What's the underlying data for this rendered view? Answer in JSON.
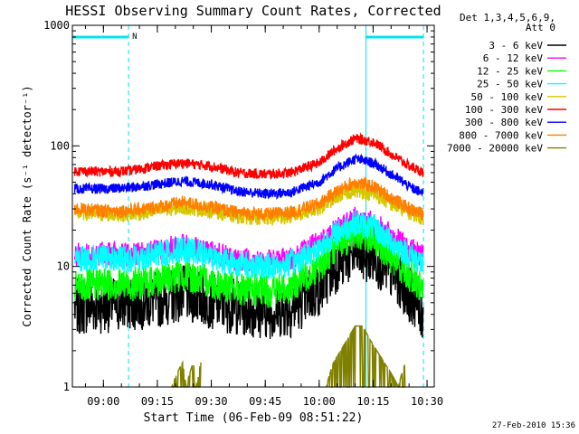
{
  "chart_data": {
    "type": "line",
    "title": "HESSI Observing Summary Count Rates, Corrected",
    "xlabel": "Start Time (06-Feb-09 08:51:22)",
    "ylabel": "Corrected Count Rate (s⁻¹ detector⁻¹)",
    "y_scale": "log",
    "ylim": [
      1,
      1000
    ],
    "xlim": [
      "08:51:22",
      "10:32:00"
    ],
    "y_ticks": [
      "1",
      "10",
      "100",
      "1000"
    ],
    "x_ticks": [
      "09:00",
      "09:15",
      "09:30",
      "09:45",
      "10:00",
      "10:15",
      "10:30"
    ],
    "grid": false,
    "legend_position": "right",
    "legend_header": [
      "Det 1,3,4,5,6,9,",
      "Att 0"
    ],
    "footer_date": "27-Feb-2010 15:36",
    "flag_label": "N",
    "night_periods": [
      {
        "start": "08:51:22",
        "end": "09:07:00"
      },
      {
        "start": "10:13:00",
        "end": "10:29:00"
      }
    ],
    "series": [
      {
        "name": "3 - 6 keV",
        "color": "#000000",
        "x": [
          "08:52",
          "09:00",
          "09:07",
          "09:15",
          "09:22",
          "09:30",
          "09:37",
          "09:45",
          "09:52",
          "10:00",
          "10:05",
          "10:10",
          "10:15",
          "10:20",
          "10:25",
          "10:29"
        ],
        "y": [
          4.6,
          4.8,
          5.0,
          5.3,
          6.0,
          5.2,
          4.6,
          4.3,
          4.4,
          6.5,
          10.5,
          13.0,
          12.0,
          9.0,
          6.0,
          4.0
        ]
      },
      {
        "name": "6 - 12 keV",
        "color": "#ff00ff",
        "x": [
          "08:52",
          "09:00",
          "09:07",
          "09:15",
          "09:22",
          "09:30",
          "09:37",
          "09:45",
          "09:52",
          "10:00",
          "10:05",
          "10:10",
          "10:15",
          "10:20",
          "10:25",
          "10:29"
        ],
        "y": [
          12.5,
          12.8,
          12.5,
          13.5,
          15.0,
          13.0,
          11.5,
          11.0,
          11.5,
          16.0,
          21.0,
          25.0,
          23.0,
          18.0,
          14.0,
          12.0
        ]
      },
      {
        "name": "12 - 25 keV",
        "color": "#00ff00",
        "x": [
          "08:52",
          "09:00",
          "09:07",
          "09:15",
          "09:22",
          "09:30",
          "09:37",
          "09:45",
          "09:52",
          "10:00",
          "10:05",
          "10:10",
          "10:15",
          "10:20",
          "10:25",
          "10:29"
        ],
        "y": [
          6.6,
          7.2,
          7.0,
          7.6,
          8.5,
          7.4,
          6.5,
          6.2,
          6.6,
          10.0,
          15.0,
          19.0,
          17.0,
          12.0,
          8.5,
          6.5
        ]
      },
      {
        "name": "25 - 50 keV",
        "color": "#00ffff",
        "x": [
          "08:52",
          "09:00",
          "09:07",
          "09:15",
          "09:22",
          "09:30",
          "09:37",
          "09:45",
          "09:52",
          "10:00",
          "10:05",
          "10:10",
          "10:15",
          "10:20",
          "10:25",
          "10:29"
        ],
        "y": [
          11.5,
          11.8,
          11.5,
          12.5,
          14.0,
          12.0,
          10.5,
          10.0,
          10.5,
          14.0,
          19.0,
          23.0,
          21.0,
          16.0,
          12.5,
          10.5
        ]
      },
      {
        "name": "50 - 100 keV",
        "color": "#d4c800",
        "x": [
          "08:52",
          "09:00",
          "09:07",
          "09:15",
          "09:22",
          "09:30",
          "09:37",
          "09:45",
          "09:52",
          "10:00",
          "10:05",
          "10:10",
          "10:15",
          "10:20",
          "10:25",
          "10:29"
        ],
        "y": [
          28,
          27,
          27,
          29,
          31,
          29,
          26,
          25,
          26,
          30,
          38,
          43,
          40,
          33,
          28,
          25
        ]
      },
      {
        "name": "100 - 300 keV",
        "color": "#ff0000",
        "x": [
          "08:52",
          "09:00",
          "09:07",
          "09:15",
          "09:22",
          "09:30",
          "09:37",
          "09:45",
          "09:52",
          "10:00",
          "10:05",
          "10:10",
          "10:15",
          "10:20",
          "10:25",
          "10:29"
        ],
        "y": [
          62,
          61,
          62,
          68,
          72,
          68,
          60,
          58,
          60,
          72,
          95,
          115,
          108,
          85,
          68,
          60
        ]
      },
      {
        "name": "300 - 800 keV",
        "color": "#0000ff",
        "x": [
          "08:52",
          "09:00",
          "09:07",
          "09:15",
          "09:22",
          "09:30",
          "09:37",
          "09:45",
          "09:52",
          "10:00",
          "10:05",
          "10:10",
          "10:15",
          "10:20",
          "10:25",
          "10:29"
        ],
        "y": [
          44,
          44,
          45,
          48,
          51,
          48,
          42,
          40,
          41,
          50,
          65,
          78,
          72,
          58,
          46,
          40
        ]
      },
      {
        "name": "800 - 7000 keV",
        "color": "#ff8000",
        "x": [
          "08:52",
          "09:00",
          "09:07",
          "09:15",
          "09:22",
          "09:30",
          "09:37",
          "09:45",
          "09:52",
          "10:00",
          "10:05",
          "10:10",
          "10:15",
          "10:20",
          "10:25",
          "10:29"
        ],
        "y": [
          30,
          29,
          29,
          31,
          34,
          31,
          28,
          27,
          28,
          33,
          42,
          50,
          46,
          37,
          30,
          27
        ]
      },
      {
        "name": "7000 - 20000 keV",
        "color": "#808000",
        "x": [
          "09:19",
          "09:22",
          "09:23",
          "09:25",
          "09:26",
          "09:27",
          "10:02",
          "10:04",
          "10:06",
          "10:08",
          "10:10",
          "10:12",
          "10:14",
          "10:16",
          "10:18",
          "10:20",
          "10:22",
          "10:24"
        ],
        "y": [
          1.0,
          1.6,
          1.0,
          1.6,
          1.0,
          1.6,
          1.0,
          1.6,
          2.0,
          2.5,
          3.2,
          3.2,
          2.5,
          2.0,
          1.6,
          1.3,
          1.0,
          1.6
        ]
      }
    ]
  }
}
